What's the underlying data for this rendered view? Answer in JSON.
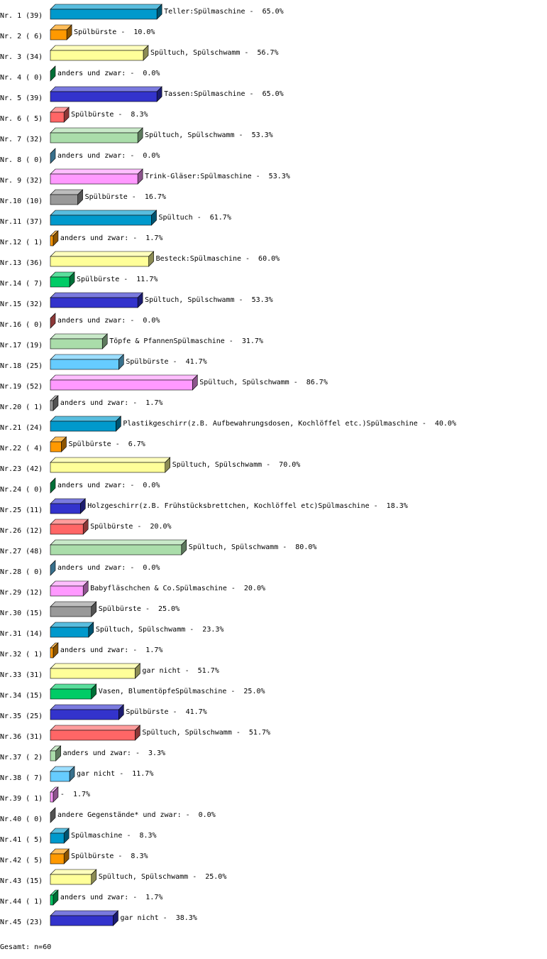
{
  "chart_data": {
    "type": "bar3d",
    "categories": [
      "Nr. 1 (39)",
      "Nr. 2 ( 6)",
      "Nr. 3 (34)",
      "Nr. 4 ( 0)",
      "Nr. 5 (39)",
      "Nr. 6 ( 5)",
      "Nr. 7 (32)",
      "Nr. 8 ( 0)",
      "Nr. 9 (32)",
      "Nr.10 (10)",
      "Nr.11 (37)",
      "Nr.12 ( 1)",
      "Nr.13 (36)",
      "Nr.14 ( 7)",
      "Nr.15 (32)",
      "Nr.16 ( 0)",
      "Nr.17 (19)",
      "Nr.18 (25)",
      "Nr.19 (52)",
      "Nr.20 ( 1)",
      "Nr.21 (24)",
      "Nr.22 ( 4)",
      "Nr.23 (42)",
      "Nr.24 ( 0)",
      "Nr.25 (11)",
      "Nr.26 (12)",
      "Nr.27 (48)",
      "Nr.28 ( 0)",
      "Nr.29 (12)",
      "Nr.30 (15)",
      "Nr.31 (14)",
      "Nr.32 ( 1)",
      "Nr.33 (31)",
      "Nr.34 (15)",
      "Nr.35 (25)",
      "Nr.36 (31)",
      "Nr.37 ( 2)",
      "Nr.38 ( 7)",
      "Nr.39 ( 1)",
      "Nr.40 ( 0)",
      "Nr.41 ( 5)",
      "Nr.42 ( 5)",
      "Nr.43 (15)",
      "Nr.44 ( 1)",
      "Nr.45 (23)"
    ],
    "labels": [
      "Teller:Spülmaschine -",
      "Spülbürste -",
      "Spültuch, Spülschwamm -",
      "anders und zwar: -",
      "Tassen:Spülmaschine -",
      "Spülbürste -",
      "Spültuch, Spülschwamm -",
      "anders und zwar: -",
      "Trink-Gläser:Spülmaschine -",
      "Spülbürste -",
      "Spültuch -",
      "anders und zwar: -",
      "Besteck:Spülmaschine -",
      "Spülbürste -",
      "Spültuch, Spülschwamm -",
      "anders und zwar: -",
      "Töpfe & PfannenSpülmaschine -",
      "Spülbürste -",
      "Spültuch, Spülschwamm -",
      "anders und zwar: -",
      "Plastikgeschirr(z.B. Aufbewahrungsdosen, Kochlöffel etc.)Spülmaschine -",
      "Spülbürste -",
      "Spültuch, Spülschwamm -",
      "anders und zwar: -",
      "Holzgeschirr(z.B. Frühstücksbrettchen, Kochlöffel etc)Spülmaschine -",
      "Spülbürste -",
      "Spültuch, Spülschwamm -",
      "anders und zwar: -",
      "Babyfläschchen & Co.Spülmaschine -",
      "Spülbürste -",
      "Spültuch, Spülschwamm -",
      "anders und zwar: -",
      "gar nicht -",
      "Vasen, BlumentöpfeSpülmaschine -",
      "Spülbürste -",
      "Spültuch, Spülschwamm -",
      "anders und zwar: -",
      "gar nicht -",
      "-",
      "andere Gegenstände* und zwar: -",
      "Spülmaschine -",
      "Spülbürste -",
      "Spültuch, Spülschwamm -",
      "anders und zwar: -",
      "gar nicht -"
    ],
    "values": [
      65.0,
      10.0,
      56.7,
      0.0,
      65.0,
      8.3,
      53.3,
      0.0,
      53.3,
      16.7,
      61.7,
      1.7,
      60.0,
      11.7,
      53.3,
      0.0,
      31.7,
      41.7,
      86.7,
      1.7,
      40.0,
      6.7,
      70.0,
      0.0,
      18.3,
      20.0,
      80.0,
      0.0,
      20.0,
      25.0,
      23.3,
      1.7,
      51.7,
      25.0,
      41.7,
      51.7,
      3.3,
      11.7,
      1.7,
      0.0,
      8.3,
      8.3,
      25.0,
      1.7,
      38.3
    ],
    "value_labels": [
      "65.0%",
      "10.0%",
      "56.7%",
      "0.0%",
      "65.0%",
      "8.3%",
      "53.3%",
      "0.0%",
      "53.3%",
      "16.7%",
      "61.7%",
      "1.7%",
      "60.0%",
      "11.7%",
      "53.3%",
      "0.0%",
      "31.7%",
      "41.7%",
      "86.7%",
      "1.7%",
      "40.0%",
      "6.7%",
      "70.0%",
      "0.0%",
      "18.3%",
      "20.0%",
      "80.0%",
      "0.0%",
      "20.0%",
      "25.0%",
      "23.3%",
      "1.7%",
      "51.7%",
      "25.0%",
      "41.7%",
      "51.7%",
      "3.3%",
      "11.7%",
      "1.7%",
      "0.0%",
      "8.3%",
      "8.3%",
      "25.0%",
      "1.7%",
      "38.3%"
    ],
    "colors": [
      "#0099cc",
      "#ff9900",
      "#ffff99",
      "#00cc66",
      "#3333cc",
      "#ff6666",
      "#aaddaa",
      "#66ccff",
      "#ff99ff",
      "#999999"
    ],
    "annotation": "Gesamt: n=60"
  }
}
